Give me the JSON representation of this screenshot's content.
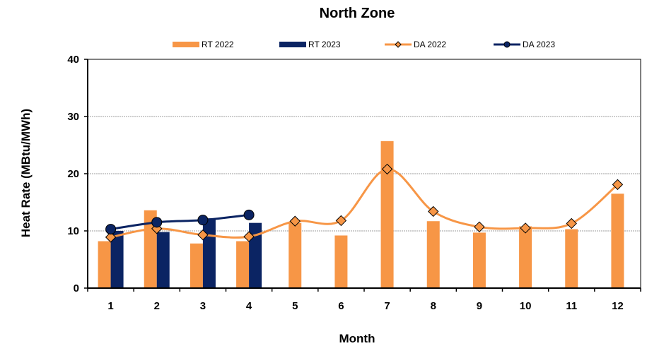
{
  "chart_data": {
    "type": "bar",
    "title": "North Zone",
    "xlabel": "Month",
    "ylabel": "Heat Rate (MBtu/MWh)",
    "ylim": [
      0,
      40
    ],
    "yticks": [
      0,
      10,
      20,
      30,
      40
    ],
    "grid": true,
    "legend_position": "top",
    "categories": [
      "1",
      "2",
      "3",
      "4",
      "5",
      "6",
      "7",
      "8",
      "9",
      "10",
      "11",
      "12"
    ],
    "series": [
      {
        "name": "RT 2022",
        "type": "bar",
        "color": "#F79646",
        "values": [
          8.2,
          13.6,
          7.8,
          8.2,
          11.4,
          9.2,
          25.7,
          11.7,
          9.7,
          10.8,
          10.3,
          16.5
        ]
      },
      {
        "name": "RT 2023",
        "type": "bar",
        "color": "#0B2463",
        "values": [
          10.0,
          9.8,
          12.2,
          11.4,
          null,
          null,
          null,
          null,
          null,
          null,
          null,
          null
        ]
      },
      {
        "name": "DA 2022",
        "type": "line",
        "marker": "diamond",
        "color": "#F79646",
        "values": [
          8.9,
          10.4,
          9.3,
          9.0,
          11.7,
          11.8,
          20.8,
          13.4,
          10.7,
          10.5,
          11.3,
          18.1
        ]
      },
      {
        "name": "DA 2023",
        "type": "line",
        "marker": "circle",
        "color": "#0B2463",
        "values": [
          10.3,
          11.5,
          11.9,
          12.8,
          null,
          null,
          null,
          null,
          null,
          null,
          null,
          null
        ]
      }
    ]
  }
}
